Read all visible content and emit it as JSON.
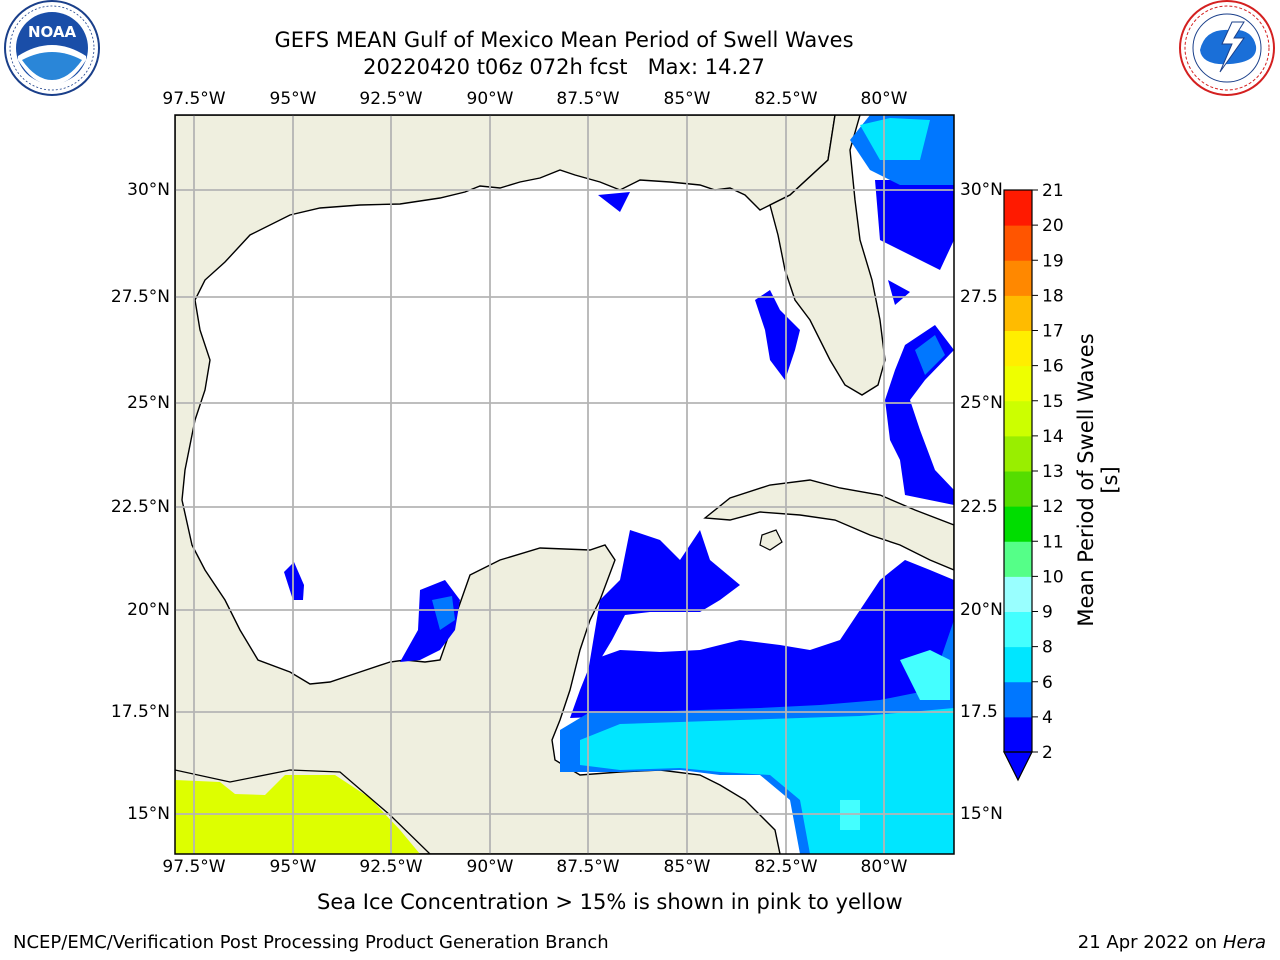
{
  "title": {
    "line1": "GEFS MEAN Gulf of Mexico Mean Period of Swell Waves",
    "line2": "20220420 t06z 072h fcst   Max: 14.27"
  },
  "logos": {
    "left": {
      "icon": "noaa-logo-icon",
      "text": "NOAA",
      "ring_text": "NATIONAL OCEANIC AND ATMOSPHERIC ADMINISTRATION · U.S. DEPARTMENT OF COMMERCE"
    },
    "right": {
      "icon": "nws-logo-icon",
      "ring_text": "NATIONAL WEATHER SERVICE"
    }
  },
  "map": {
    "lon_ticks": [
      "97.5°W",
      "95°W",
      "92.5°W",
      "90°W",
      "87.5°W",
      "85°W",
      "82.5°W",
      "80°W"
    ],
    "lat_ticks_left": [
      "30°N",
      "27.5°N",
      "25°N",
      "22.5°N",
      "20°N",
      "17.5°N",
      "15°N"
    ],
    "lat_ticks_right": [
      "30°N",
      "27.5",
      "25°N",
      "22.5",
      "20°N",
      "17.5",
      "15°N"
    ],
    "colors": {
      "land": "#efefdf",
      "ocean": "#ffffff",
      "grid": "#b4b4b4",
      "coast": "#000000",
      "ice": "#ddff00"
    }
  },
  "colorbar": {
    "label": "Mean Period of Swell Waves [s]",
    "ticks": [
      "2",
      "4",
      "6",
      "8",
      "9",
      "10",
      "11",
      "12",
      "13",
      "14",
      "15",
      "16",
      "17",
      "18",
      "19",
      "20",
      "21"
    ],
    "colors": [
      "#0000ff",
      "#0077ff",
      "#00e6ff",
      "#44ffff",
      "#99ffff",
      "#55ff88",
      "#00dd00",
      "#55dd00",
      "#99ee00",
      "#ccff00",
      "#eeff00",
      "#ffee00",
      "#ffbb00",
      "#ff8800",
      "#ff5500",
      "#ff1a00"
    ]
  },
  "caption": "Sea Ice Concentration > 15% is shown in pink to yellow",
  "footer": {
    "left": "NCEP/EMC/Verification Post Processing Product Generation Branch",
    "right_date": "21 Apr 2022 on ",
    "right_host": "Hera"
  }
}
